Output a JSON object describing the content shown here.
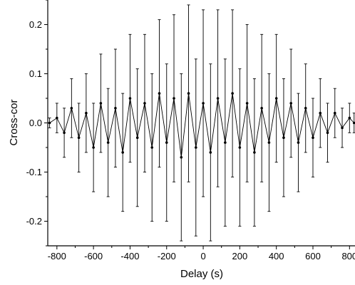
{
  "chart_data": {
    "type": "scatter",
    "title": "",
    "xlabel": "Delay (s)",
    "ylabel": "Cross-cor",
    "xlim": [
      -850,
      830
    ],
    "ylim": [
      -0.25,
      0.25
    ],
    "x_ticks": [
      -800,
      -600,
      -400,
      -200,
      0,
      200,
      400,
      600,
      800
    ],
    "y_ticks": [
      -0.2,
      -0.1,
      0.0,
      0.1,
      0.2
    ],
    "x_tick_labels": [
      "-800",
      "-600",
      "-400",
      "-200",
      "0",
      "200",
      "400",
      "600",
      "800"
    ],
    "y_tick_labels": [
      "-0.2",
      "-0.1",
      "0.0",
      "0.1",
      "0.2"
    ],
    "grid": false,
    "marker_color": "#000000",
    "series": [
      {
        "error_bars": true,
        "points": [
          {
            "x": -840,
            "y": 0.0,
            "err": 0.01
          },
          {
            "x": -800,
            "y": 0.01,
            "err": 0.03
          },
          {
            "x": -760,
            "y": -0.02,
            "err": 0.05
          },
          {
            "x": -720,
            "y": 0.03,
            "err": 0.06
          },
          {
            "x": -680,
            "y": -0.03,
            "err": 0.07
          },
          {
            "x": -640,
            "y": 0.02,
            "err": 0.08
          },
          {
            "x": -600,
            "y": -0.05,
            "err": 0.09
          },
          {
            "x": -560,
            "y": 0.04,
            "err": 0.1
          },
          {
            "x": -520,
            "y": -0.04,
            "err": 0.11
          },
          {
            "x": -480,
            "y": 0.03,
            "err": 0.12
          },
          {
            "x": -440,
            "y": -0.06,
            "err": 0.12
          },
          {
            "x": -400,
            "y": 0.05,
            "err": 0.13
          },
          {
            "x": -360,
            "y": -0.03,
            "err": 0.14
          },
          {
            "x": -320,
            "y": 0.04,
            "err": 0.14
          },
          {
            "x": -280,
            "y": -0.05,
            "err": 0.15
          },
          {
            "x": -240,
            "y": 0.06,
            "err": 0.15
          },
          {
            "x": -200,
            "y": -0.04,
            "err": 0.16
          },
          {
            "x": -160,
            "y": 0.05,
            "err": 0.17
          },
          {
            "x": -120,
            "y": -0.07,
            "err": 0.17
          },
          {
            "x": -80,
            "y": 0.06,
            "err": 0.18
          },
          {
            "x": -40,
            "y": -0.05,
            "err": 0.18
          },
          {
            "x": 0,
            "y": 0.04,
            "err": 0.19
          },
          {
            "x": 40,
            "y": -0.06,
            "err": 0.18
          },
          {
            "x": 80,
            "y": 0.05,
            "err": 0.18
          },
          {
            "x": 120,
            "y": -0.04,
            "err": 0.17
          },
          {
            "x": 160,
            "y": 0.06,
            "err": 0.17
          },
          {
            "x": 200,
            "y": -0.05,
            "err": 0.16
          },
          {
            "x": 240,
            "y": 0.04,
            "err": 0.16
          },
          {
            "x": 280,
            "y": -0.06,
            "err": 0.15
          },
          {
            "x": 320,
            "y": 0.03,
            "err": 0.15
          },
          {
            "x": 360,
            "y": -0.04,
            "err": 0.14
          },
          {
            "x": 400,
            "y": 0.05,
            "err": 0.13
          },
          {
            "x": 440,
            "y": -0.03,
            "err": 0.12
          },
          {
            "x": 480,
            "y": 0.04,
            "err": 0.11
          },
          {
            "x": 520,
            "y": -0.04,
            "err": 0.1
          },
          {
            "x": 560,
            "y": 0.03,
            "err": 0.09
          },
          {
            "x": 600,
            "y": -0.03,
            "err": 0.08
          },
          {
            "x": 640,
            "y": 0.02,
            "err": 0.07
          },
          {
            "x": 680,
            "y": -0.02,
            "err": 0.06
          },
          {
            "x": 720,
            "y": 0.02,
            "err": 0.05
          },
          {
            "x": 760,
            "y": -0.01,
            "err": 0.04
          },
          {
            "x": 800,
            "y": 0.01,
            "err": 0.03
          },
          {
            "x": 825,
            "y": 0.0,
            "err": 0.02
          }
        ]
      }
    ]
  }
}
